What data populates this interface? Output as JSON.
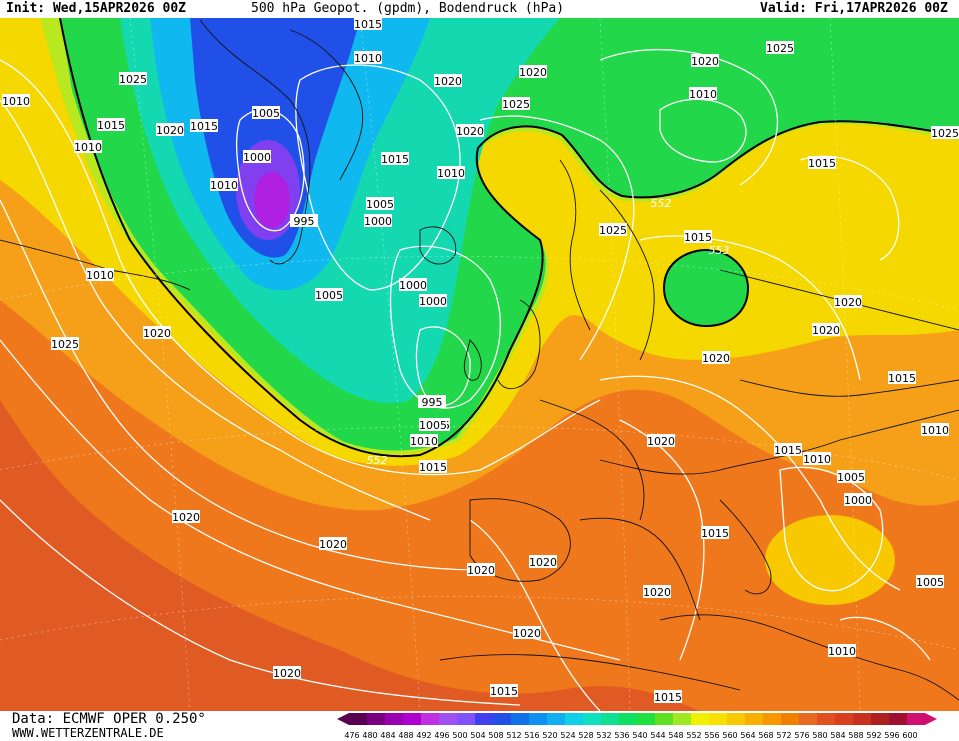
{
  "header": {
    "init": "Init: Wed,15APR2026 00Z",
    "title": "500 hPa Geopot. (gpdm), Bodendruck (hPa)",
    "valid": "Valid: Fri,17APR2026 00Z"
  },
  "footer": {
    "source": "Data: ECMWF OPER 0.250°",
    "website": "WWW.WETTERZENTRALE.DE"
  },
  "legend": {
    "ticks": [
      "476",
      "480",
      "484",
      "488",
      "492",
      "496",
      "500",
      "504",
      "508",
      "512",
      "516",
      "520",
      "524",
      "528",
      "532",
      "536",
      "540",
      "544",
      "548",
      "552",
      "556",
      "560",
      "564",
      "568",
      "572",
      "576",
      "580",
      "584",
      "588",
      "592",
      "596",
      "600"
    ],
    "colors": [
      "#5a0050",
      "#7a0080",
      "#9a00b0",
      "#b000d0",
      "#c030e0",
      "#a050f0",
      "#8050f8",
      "#4040f0",
      "#2050e8",
      "#1070e8",
      "#1090f0",
      "#10b0f0",
      "#10d0e8",
      "#10e0c0",
      "#10e090",
      "#10e060",
      "#20e040",
      "#60e020",
      "#a0e820",
      "#f0f000",
      "#f8e000",
      "#f8c800",
      "#f8b000",
      "#f89800",
      "#f08000",
      "#e86820",
      "#e05020",
      "#d84020",
      "#c83020",
      "#b02020",
      "#a01030",
      "#d01070"
    ]
  },
  "map_labels": {
    "isobars": [
      "1015",
      "1010",
      "1025",
      "1010",
      "1015",
      "1020",
      "1015",
      "1010",
      "1005",
      "1000",
      "1010",
      "995",
      "1020",
      "1020",
      "1020",
      "1025",
      "1025",
      "1020",
      "1010",
      "1015",
      "1005",
      "1000",
      "1000",
      "1010",
      "1005",
      "1015",
      "1010",
      "1020",
      "1005",
      "1000",
      "995",
      "1005",
      "1010",
      "1015",
      "1025",
      "1015",
      "1025",
      "1020",
      "1020",
      "1020",
      "1015",
      "1010",
      "1015",
      "1010",
      "1005",
      "1000",
      "1020",
      "1020",
      "1020",
      "1020",
      "1020",
      "1015",
      "1020",
      "1020",
      "1010",
      "1015",
      "1005",
      "1015",
      "1010",
      "1020",
      "1025"
    ],
    "contour_552": "552",
    "contour_553": "553"
  },
  "map_colors": {
    "ocean_south": "#e05a24",
    "orange": "#f0781c",
    "light_orange": "#f5a018",
    "yellow": "#f5d800",
    "lime": "#b8e820",
    "green": "#22d84a",
    "teal": "#14d8b0",
    "cyan": "#10b8f0",
    "blue": "#2050e8",
    "violet": "#8040f0",
    "purple": "#b020e0"
  }
}
